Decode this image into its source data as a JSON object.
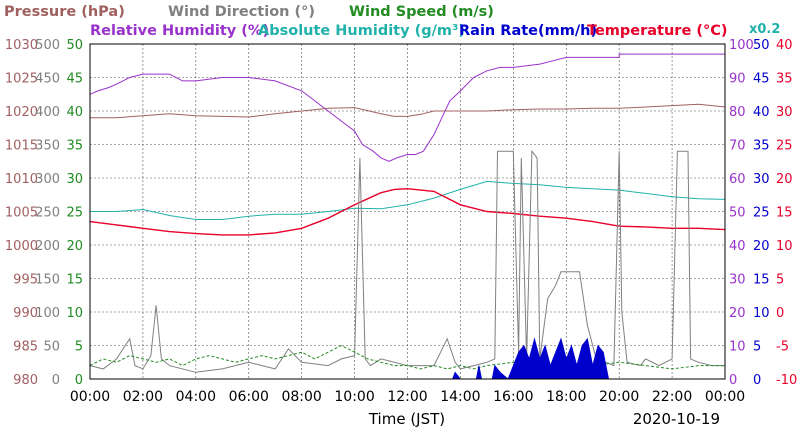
{
  "chart_data": {
    "type": "line",
    "legend": {
      "row1": [
        {
          "label": "Pressure (hPa)",
          "color": "#a06060"
        },
        {
          "label": "Wind Direction (°)",
          "color": "#808080"
        },
        {
          "label": "Wind Speed (m/s)",
          "color": "#228b22"
        }
      ],
      "row2": [
        {
          "label": "Relative Humidity (%)",
          "color": "#9932cc"
        },
        {
          "label": "Absolute Humidity (g/m³)",
          "color": "#20b2aa"
        },
        {
          "label": "Rain Rate(mm/h)",
          "color": "#0000cd"
        },
        {
          "label": "Temperature (°C)",
          "color": "#e8002a"
        }
      ],
      "scale_note": {
        "label": "x0.2",
        "color": "#20b2aa"
      }
    },
    "x_axis": {
      "label": "Time (JST)",
      "date": "2020-10-19",
      "range": [
        0,
        24
      ],
      "ticks": [
        "00:00",
        "02:00",
        "04:00",
        "06:00",
        "08:00",
        "10:00",
        "12:00",
        "14:00",
        "16:00",
        "18:00",
        "20:00",
        "22:00",
        "00:00"
      ]
    },
    "left_axes": [
      {
        "name": "pressure",
        "color": "#a06060",
        "range": [
          980,
          1030
        ],
        "ticks": [
          "980",
          "985",
          "990",
          "995",
          "1000",
          "1005",
          "1010",
          "1015",
          "1020",
          "1025",
          "1030"
        ]
      },
      {
        "name": "wind_direction",
        "color": "#808080",
        "range": [
          0,
          500
        ],
        "ticks": [
          "0",
          "50",
          "100",
          "150",
          "200",
          "250",
          "300",
          "350",
          "400",
          "450",
          "500"
        ]
      },
      {
        "name": "wind_speed",
        "color": "#228b22",
        "range": [
          0,
          50
        ],
        "ticks": [
          "0",
          "5",
          "10",
          "15",
          "20",
          "25",
          "30",
          "35",
          "40",
          "45",
          "50"
        ]
      }
    ],
    "right_axes": [
      {
        "name": "relative_humidity",
        "color": "#9932cc",
        "range": [
          0,
          100
        ],
        "ticks": [
          "0",
          "10",
          "20",
          "30",
          "40",
          "50",
          "60",
          "70",
          "80",
          "90",
          "100"
        ]
      },
      {
        "name": "rain_rate",
        "color": "#0000cd",
        "range": [
          0,
          50
        ],
        "ticks": [
          "0",
          "5",
          "10",
          "15",
          "20",
          "25",
          "30",
          "35",
          "40",
          "45",
          "50"
        ]
      },
      {
        "name": "temperature",
        "color": "#e8002a",
        "range": [
          -10,
          40
        ],
        "ticks": [
          "-10",
          "-5",
          "0",
          "5",
          "10",
          "15",
          "20",
          "25",
          "30",
          "35",
          "40"
        ]
      }
    ],
    "series": [
      {
        "name": "Relative Humidity (%)",
        "axis": "relative_humidity",
        "color": "#9932cc",
        "points": [
          [
            0,
            85
          ],
          [
            0.3,
            86
          ],
          [
            0.7,
            87
          ],
          [
            1,
            88
          ],
          [
            1.5,
            90
          ],
          [
            2,
            91
          ],
          [
            3,
            91
          ],
          [
            3.5,
            89
          ],
          [
            4,
            89
          ],
          [
            5,
            90
          ],
          [
            6,
            90
          ],
          [
            7,
            89
          ],
          [
            8,
            86
          ],
          [
            9,
            80
          ],
          [
            9.5,
            77
          ],
          [
            10,
            74
          ],
          [
            10.3,
            70
          ],
          [
            10.7,
            68
          ],
          [
            11,
            66
          ],
          [
            11.3,
            65
          ],
          [
            11.6,
            66
          ],
          [
            12,
            67
          ],
          [
            12.3,
            67
          ],
          [
            12.6,
            68
          ],
          [
            13,
            73
          ],
          [
            13.3,
            78
          ],
          [
            13.6,
            83
          ],
          [
            14,
            86
          ],
          [
            14.5,
            90
          ],
          [
            15,
            92
          ],
          [
            15.5,
            93
          ],
          [
            16,
            93
          ],
          [
            17,
            94
          ],
          [
            17.5,
            95
          ],
          [
            18,
            96
          ],
          [
            19,
            96
          ],
          [
            20,
            96
          ],
          [
            20,
            97
          ],
          [
            21,
            97
          ],
          [
            22,
            97
          ],
          [
            23,
            97
          ],
          [
            24,
            97
          ]
        ]
      },
      {
        "name": "Pressure (hPa)",
        "axis": "pressure",
        "color": "#a06060",
        "points": [
          [
            0,
            1019
          ],
          [
            1,
            1019
          ],
          [
            2,
            1019.3
          ],
          [
            3,
            1019.6
          ],
          [
            4,
            1019.3
          ],
          [
            5,
            1019.2
          ],
          [
            6,
            1019.1
          ],
          [
            7,
            1019.6
          ],
          [
            8,
            1020
          ],
          [
            9,
            1020.4
          ],
          [
            10,
            1020.5
          ],
          [
            11,
            1019.6
          ],
          [
            11.5,
            1019.2
          ],
          [
            12,
            1019.2
          ],
          [
            12.5,
            1019.5
          ],
          [
            13,
            1020
          ],
          [
            14,
            1020
          ],
          [
            15,
            1020
          ],
          [
            16,
            1020.2
          ],
          [
            17,
            1020.3
          ],
          [
            18,
            1020.3
          ],
          [
            19,
            1020.4
          ],
          [
            20,
            1020.4
          ],
          [
            21,
            1020.6
          ],
          [
            22,
            1020.8
          ],
          [
            23,
            1021
          ],
          [
            24,
            1020.6
          ]
        ]
      },
      {
        "name": "Absolute Humidity (g/m³)",
        "axis": "pressure",
        "color": "#20b2aa",
        "points": [
          [
            0,
            1005
          ],
          [
            1,
            1005
          ],
          [
            2,
            1005.3
          ],
          [
            3,
            1004.4
          ],
          [
            4,
            1003.8
          ],
          [
            5,
            1003.8
          ],
          [
            6,
            1004.3
          ],
          [
            7,
            1004.6
          ],
          [
            8,
            1004.6
          ],
          [
            9,
            1005
          ],
          [
            10,
            1005.5
          ],
          [
            11,
            1005.4
          ],
          [
            12,
            1006
          ],
          [
            13,
            1007
          ],
          [
            14,
            1008.3
          ],
          [
            15,
            1009.5
          ],
          [
            16,
            1009.2
          ],
          [
            17,
            1009
          ],
          [
            18,
            1008.6
          ],
          [
            19,
            1008.4
          ],
          [
            20,
            1008.2
          ],
          [
            21,
            1007.7
          ],
          [
            22,
            1007.2
          ],
          [
            23,
            1006.9
          ],
          [
            24,
            1006.8
          ]
        ]
      },
      {
        "name": "Temperature (°C)",
        "axis": "temperature",
        "color": "#e8002a",
        "points": [
          [
            0,
            13.5
          ],
          [
            1,
            13
          ],
          [
            2,
            12.5
          ],
          [
            3,
            12
          ],
          [
            4,
            11.7
          ],
          [
            5,
            11.5
          ],
          [
            6,
            11.5
          ],
          [
            7,
            11.8
          ],
          [
            8,
            12.5
          ],
          [
            9,
            14
          ],
          [
            10,
            16
          ],
          [
            11,
            17.8
          ],
          [
            11.5,
            18.3
          ],
          [
            12,
            18.4
          ],
          [
            13,
            18
          ],
          [
            14,
            16
          ],
          [
            15,
            15
          ],
          [
            16,
            14.7
          ],
          [
            17,
            14.3
          ],
          [
            18,
            14
          ],
          [
            19,
            13.5
          ],
          [
            20,
            12.8
          ],
          [
            21,
            12.7
          ],
          [
            22,
            12.5
          ],
          [
            23,
            12.5
          ],
          [
            24,
            12.3
          ]
        ]
      },
      {
        "name": "Wind Direction (°)",
        "axis": "wind_direction",
        "color": "#808080",
        "points": [
          [
            0,
            20
          ],
          [
            0.5,
            15
          ],
          [
            1,
            30
          ],
          [
            1.5,
            60
          ],
          [
            1.7,
            20
          ],
          [
            2,
            15
          ],
          [
            2.3,
            35
          ],
          [
            2.5,
            110
          ],
          [
            2.7,
            30
          ],
          [
            3,
            20
          ],
          [
            4,
            10
          ],
          [
            5,
            15
          ],
          [
            6,
            25
          ],
          [
            7,
            15
          ],
          [
            7.5,
            45
          ],
          [
            8,
            25
          ],
          [
            9,
            20
          ],
          [
            9.5,
            30
          ],
          [
            10,
            35
          ],
          [
            10.2,
            330
          ],
          [
            10.4,
            30
          ],
          [
            10.6,
            20
          ],
          [
            11,
            30
          ],
          [
            12,
            20
          ],
          [
            13,
            20
          ],
          [
            13.5,
            60
          ],
          [
            13.8,
            25
          ],
          [
            14,
            15
          ],
          [
            14.5,
            20
          ],
          [
            15,
            25
          ],
          [
            15.3,
            30
          ],
          [
            15.4,
            340
          ],
          [
            16,
            340
          ],
          [
            16.2,
            40
          ],
          [
            16.3,
            330
          ],
          [
            16.5,
            30
          ],
          [
            16.7,
            340
          ],
          [
            16.9,
            330
          ],
          [
            17,
            30
          ],
          [
            17.3,
            120
          ],
          [
            17.6,
            140
          ],
          [
            17.8,
            160
          ],
          [
            18,
            160
          ],
          [
            18.5,
            160
          ],
          [
            18.8,
            80
          ],
          [
            19,
            50
          ],
          [
            19.2,
            20
          ],
          [
            19.5,
            25
          ],
          [
            19.8,
            20
          ],
          [
            20,
            340
          ],
          [
            20.1,
            100
          ],
          [
            20.3,
            25
          ],
          [
            20.8,
            20
          ],
          [
            21,
            30
          ],
          [
            21.5,
            20
          ],
          [
            22,
            30
          ],
          [
            22.2,
            340
          ],
          [
            22.6,
            340
          ],
          [
            22.7,
            30
          ],
          [
            23,
            25
          ],
          [
            23.5,
            20
          ],
          [
            24,
            20
          ]
        ]
      },
      {
        "name": "Wind Speed (m/s)",
        "axis": "wind_speed",
        "color": "#228b22",
        "points": [
          [
            0,
            2
          ],
          [
            0.5,
            3
          ],
          [
            1,
            2.5
          ],
          [
            1.5,
            3.5
          ],
          [
            2,
            3
          ],
          [
            2.5,
            2.5
          ],
          [
            3,
            3
          ],
          [
            3.5,
            2
          ],
          [
            4,
            3
          ],
          [
            4.5,
            3.5
          ],
          [
            5,
            3
          ],
          [
            5.5,
            2.5
          ],
          [
            6,
            3
          ],
          [
            6.5,
            3.5
          ],
          [
            7,
            3
          ],
          [
            7.5,
            3.5
          ],
          [
            8,
            4
          ],
          [
            8.5,
            3
          ],
          [
            9,
            4
          ],
          [
            9.5,
            5
          ],
          [
            10,
            4
          ],
          [
            10.5,
            3
          ],
          [
            11,
            2.5
          ],
          [
            11.5,
            2
          ],
          [
            12,
            2
          ],
          [
            12.5,
            1.5
          ],
          [
            13,
            2
          ],
          [
            13.5,
            1.5
          ],
          [
            14,
            2
          ],
          [
            14.5,
            1.5
          ],
          [
            15,
            2
          ],
          [
            16,
            2.5
          ],
          [
            17,
            2
          ],
          [
            18,
            2.5
          ],
          [
            19,
            2
          ],
          [
            20,
            2.5
          ],
          [
            21,
            2
          ],
          [
            22,
            1.5
          ],
          [
            23,
            2
          ],
          [
            24,
            2
          ]
        ]
      },
      {
        "name": "Rain Rate(mm/h)",
        "axis": "rain_rate",
        "color": "#0000cd",
        "style": "area",
        "points": [
          [
            13.7,
            0
          ],
          [
            13.8,
            1
          ],
          [
            14,
            0
          ],
          [
            14.6,
            0
          ],
          [
            14.7,
            2
          ],
          [
            14.8,
            0
          ],
          [
            15.2,
            0
          ],
          [
            15.3,
            2
          ],
          [
            15.5,
            1
          ],
          [
            15.8,
            0
          ],
          [
            16,
            2
          ],
          [
            16.2,
            4
          ],
          [
            16.4,
            5
          ],
          [
            16.6,
            3
          ],
          [
            16.8,
            6
          ],
          [
            17,
            3
          ],
          [
            17.2,
            5
          ],
          [
            17.4,
            2
          ],
          [
            17.6,
            4
          ],
          [
            17.8,
            6
          ],
          [
            18,
            3
          ],
          [
            18.2,
            5
          ],
          [
            18.4,
            2
          ],
          [
            18.6,
            5
          ],
          [
            18.8,
            6
          ],
          [
            19,
            2
          ],
          [
            19.2,
            5
          ],
          [
            19.4,
            4
          ],
          [
            19.6,
            0
          ],
          [
            20,
            0
          ]
        ]
      }
    ]
  }
}
